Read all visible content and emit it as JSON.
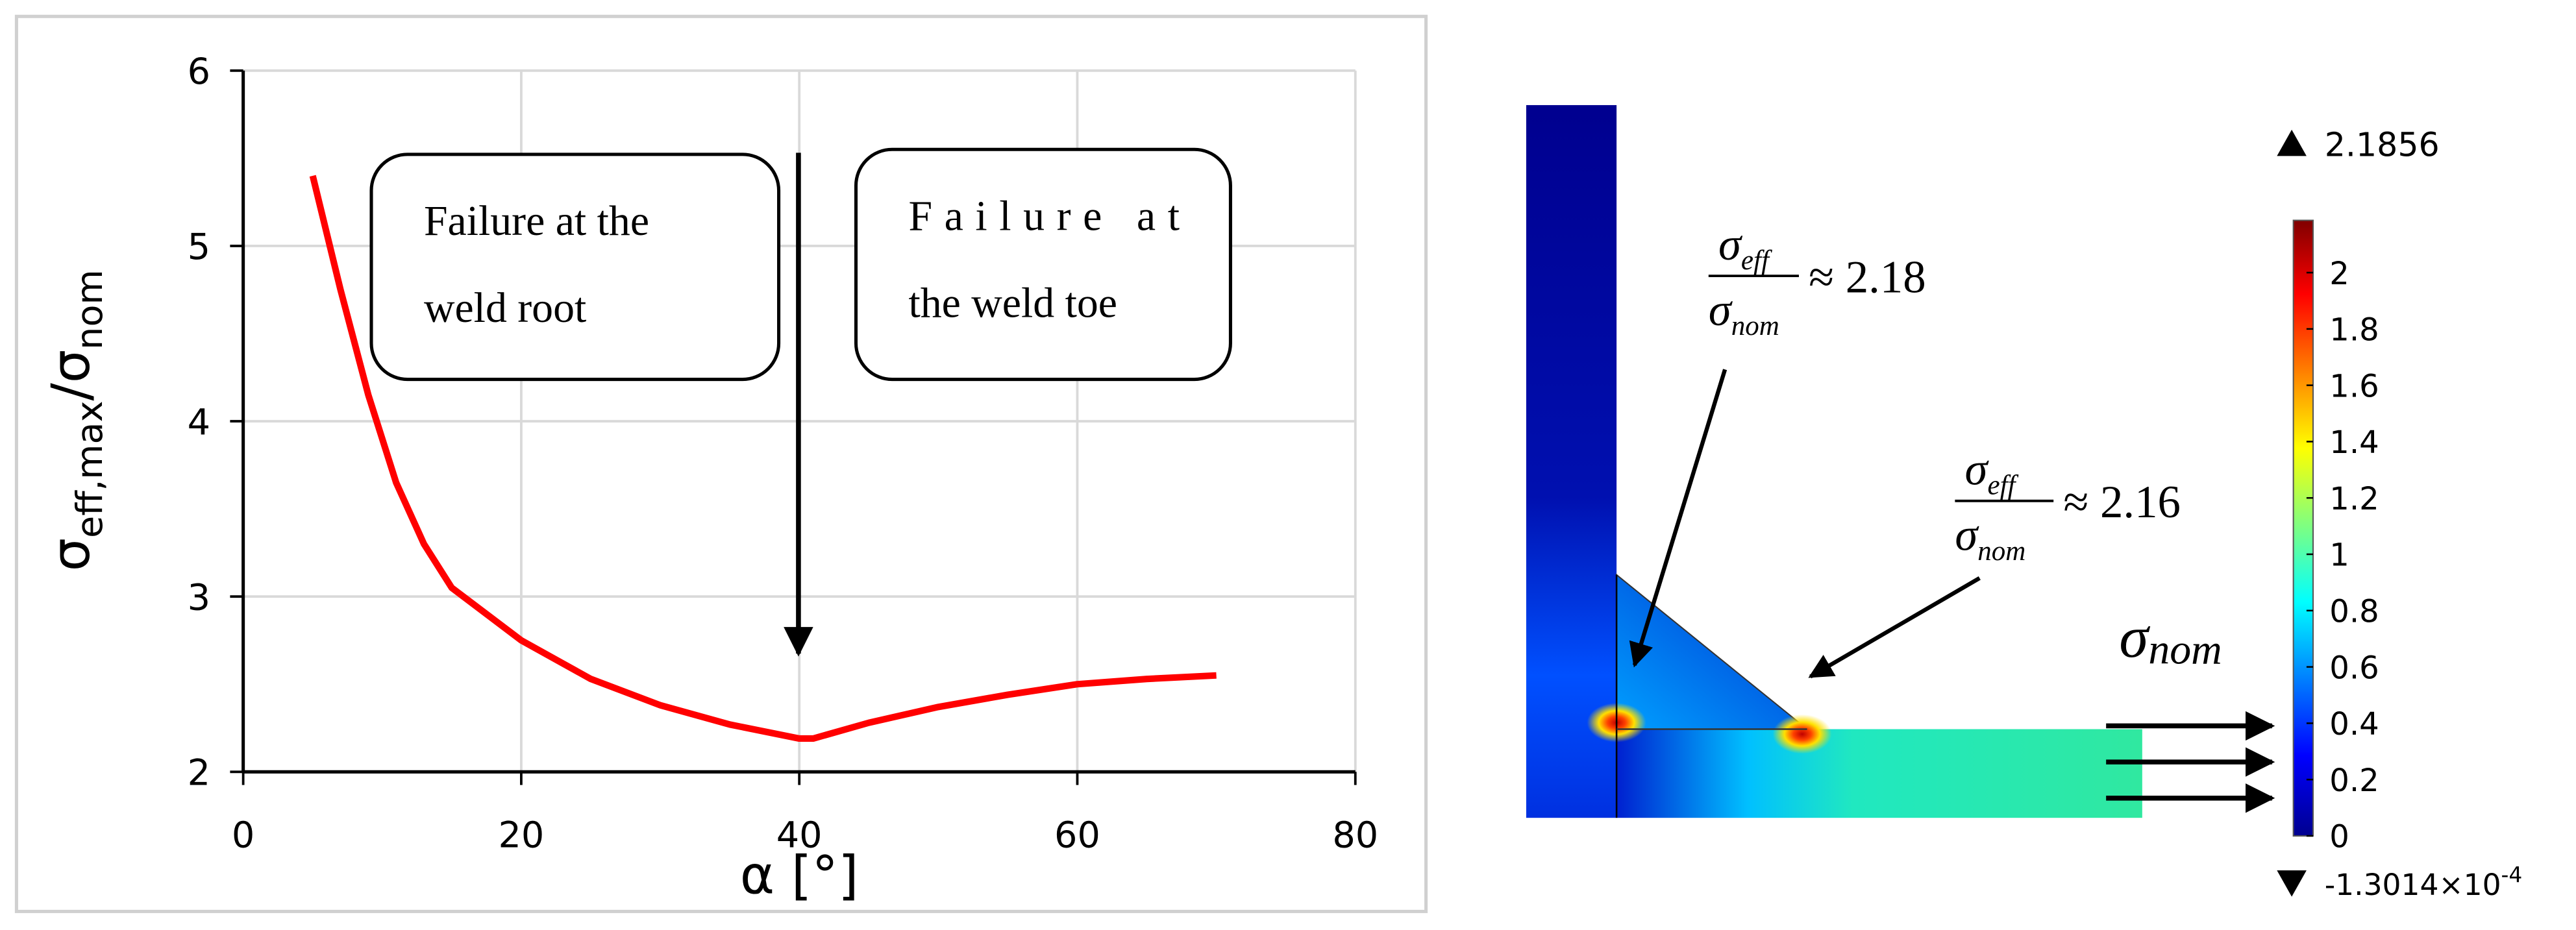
{
  "chart_data": [
    {
      "type": "line",
      "x_label": "α [°]",
      "y_label_parts": [
        "σ",
        "eff,max",
        "/σ",
        "nom"
      ],
      "x": [
        5,
        7,
        9,
        11,
        13,
        15,
        20,
        25,
        30,
        35,
        40,
        41,
        45,
        50,
        55,
        60,
        65,
        70
      ],
      "series": [
        {
          "color": "#ff0000",
          "values": [
            5.4,
            4.75,
            4.15,
            3.65,
            3.3,
            3.05,
            2.75,
            2.53,
            2.38,
            2.27,
            2.19,
            2.19,
            2.28,
            2.37,
            2.44,
            2.5,
            2.53,
            2.55
          ]
        }
      ],
      "xlim": [
        0,
        80
      ],
      "ylim": [
        2,
        6
      ],
      "xticks": [
        0,
        20,
        40,
        60,
        80
      ],
      "yticks": [
        2,
        3,
        4,
        5,
        6
      ],
      "grid": true,
      "annotations": [
        {
          "lines": [
            "Failure at the",
            "weld root"
          ]
        },
        {
          "lines": [
            "Failure at",
            "the weld toe"
          ]
        }
      ]
    },
    {
      "type": "heatmap",
      "clim": [
        -0.00013014,
        2.1856
      ],
      "cticks": [
        0,
        0.2,
        0.4,
        0.6,
        0.8,
        1,
        1.2,
        1.4,
        1.6,
        1.8,
        2
      ],
      "max": 2.1856,
      "min": {
        "value": -0.00013014,
        "label": "-1.3014×10",
        "exponent": "-4"
      },
      "annotations": [
        {
          "num": "σ",
          "num_sub": "eff",
          "den": "σ",
          "den_sub": "nom",
          "text": "≈ 2.18"
        },
        {
          "num": "σ",
          "num_sub": "eff",
          "den": "σ",
          "den_sub": "nom",
          "text": "≈ 2.16"
        }
      ],
      "load_label": [
        "σ",
        "nom"
      ]
    }
  ]
}
